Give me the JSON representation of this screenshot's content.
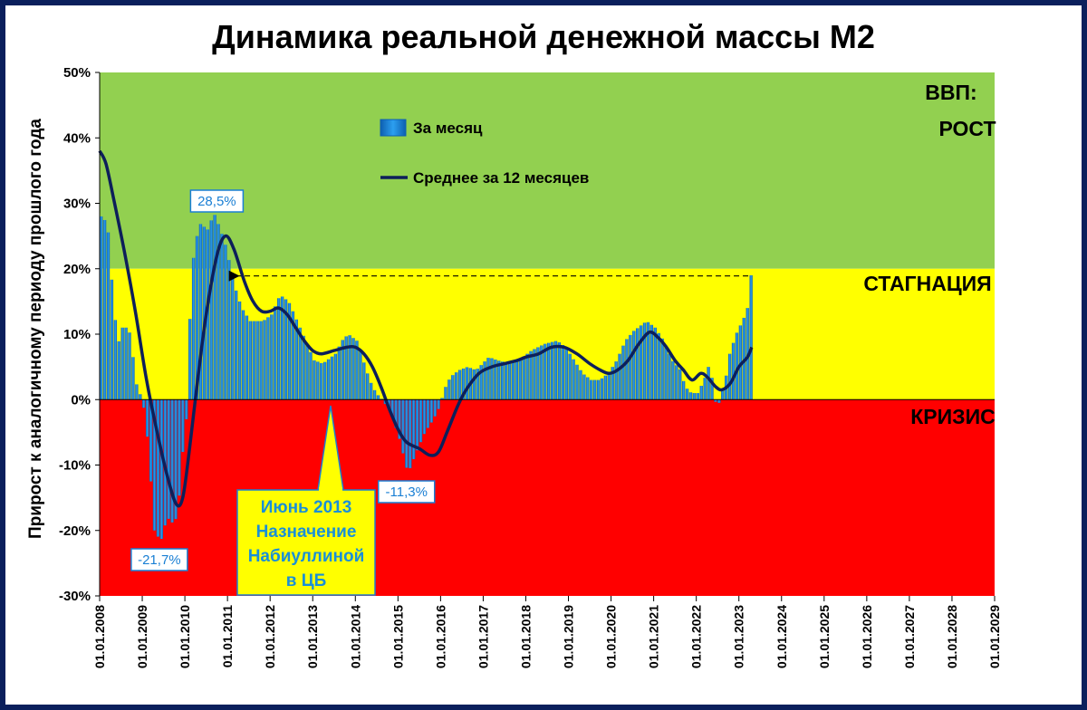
{
  "chart_data": {
    "type": "bar",
    "title": "Динамика реальной денежной массы М2",
    "ylabel": "Прирост к аналогичному периоду прошлого года",
    "ylim": [
      -30,
      50
    ],
    "yticks": [
      "50%",
      "40%",
      "30%",
      "20%",
      "10%",
      "0%",
      "-10%",
      "-20%",
      "-30%"
    ],
    "x_ticks": [
      "01.01.2008",
      "01.01.2009",
      "01.01.2010",
      "01.01.2011",
      "01.01.2012",
      "01.01.2013",
      "01.01.2014",
      "01.01.2015",
      "01.01.2016",
      "01.01.2017",
      "01.01.2018",
      "01.01.2019",
      "01.01.2020",
      "01.01.2021",
      "01.01.2022",
      "01.01.2023",
      "01.01.2024",
      "01.01.2025",
      "01.01.2026",
      "01.01.2027",
      "01.01.2028",
      "01.01.2029"
    ],
    "x_start_year": 2008,
    "zones": [
      {
        "name": "growth",
        "from": 20,
        "to": 50,
        "color": "#92d050",
        "label_lines": [
          "ВВП:",
          "РОСТ"
        ]
      },
      {
        "name": "stagnation",
        "from": 0,
        "to": 20,
        "color": "#ffff00",
        "label_lines": [
          "СТАГНАЦИЯ"
        ]
      },
      {
        "name": "crisis",
        "from": -30,
        "to": 0,
        "color": "#ff0000",
        "label_lines": [
          "КРИЗИС"
        ]
      }
    ],
    "series": [
      {
        "name": "За месяц",
        "kind": "bar",
        "color": "#1a7fd4",
        "anchors": [
          [
            2008.0,
            28
          ],
          [
            2008.15,
            27
          ],
          [
            2008.3,
            14
          ],
          [
            2008.4,
            8.5
          ],
          [
            2008.5,
            11
          ],
          [
            2008.65,
            11
          ],
          [
            2008.75,
            6.5
          ],
          [
            2008.85,
            1.5
          ],
          [
            2008.95,
            0.5
          ],
          [
            2009.05,
            -3
          ],
          [
            2009.15,
            -11
          ],
          [
            2009.25,
            -20
          ],
          [
            2009.4,
            -21.7
          ],
          [
            2009.55,
            -18
          ],
          [
            2009.7,
            -19
          ],
          [
            2009.8,
            -17.5
          ],
          [
            2009.9,
            -9
          ],
          [
            2010.0,
            -3
          ],
          [
            2010.05,
            8
          ],
          [
            2010.15,
            21
          ],
          [
            2010.3,
            27
          ],
          [
            2010.5,
            26
          ],
          [
            2010.65,
            28.5
          ],
          [
            2010.8,
            26
          ],
          [
            2010.95,
            23
          ],
          [
            2011.1,
            18
          ],
          [
            2011.3,
            14
          ],
          [
            2011.5,
            12
          ],
          [
            2011.8,
            12
          ],
          [
            2012.0,
            13
          ],
          [
            2012.2,
            16
          ],
          [
            2012.4,
            15
          ],
          [
            2012.6,
            12
          ],
          [
            2012.8,
            9
          ],
          [
            2013.0,
            6
          ],
          [
            2013.2,
            5.5
          ],
          [
            2013.5,
            7
          ],
          [
            2013.65,
            9
          ],
          [
            2013.8,
            10
          ],
          [
            2014.0,
            9
          ],
          [
            2014.15,
            6
          ],
          [
            2014.3,
            3
          ],
          [
            2014.45,
            1
          ],
          [
            2014.6,
            0
          ],
          [
            2014.8,
            -2
          ],
          [
            2015.0,
            -6
          ],
          [
            2015.2,
            -11.3
          ],
          [
            2015.4,
            -8
          ],
          [
            2015.6,
            -5
          ],
          [
            2015.8,
            -3
          ],
          [
            2015.95,
            -1
          ],
          [
            2016.05,
            1.5
          ],
          [
            2016.2,
            3.5
          ],
          [
            2016.4,
            4.5
          ],
          [
            2016.6,
            5
          ],
          [
            2016.8,
            4.5
          ],
          [
            2016.95,
            5.5
          ],
          [
            2017.1,
            6.5
          ],
          [
            2017.3,
            6
          ],
          [
            2017.6,
            5.5
          ],
          [
            2017.9,
            6.5
          ],
          [
            2018.1,
            7.5
          ],
          [
            2018.4,
            8.5
          ],
          [
            2018.7,
            9
          ],
          [
            2018.9,
            8
          ],
          [
            2019.1,
            6
          ],
          [
            2019.3,
            4
          ],
          [
            2019.5,
            3
          ],
          [
            2019.7,
            3
          ],
          [
            2019.9,
            4
          ],
          [
            2020.1,
            6
          ],
          [
            2020.3,
            9
          ],
          [
            2020.5,
            10.5
          ],
          [
            2020.8,
            12
          ],
          [
            2021.0,
            11
          ],
          [
            2021.2,
            9
          ],
          [
            2021.4,
            6
          ],
          [
            2021.6,
            4.5
          ],
          [
            2021.7,
            2
          ],
          [
            2021.85,
            1
          ],
          [
            2022.0,
            1
          ],
          [
            2022.15,
            3
          ],
          [
            2022.25,
            5
          ],
          [
            2022.35,
            3
          ],
          [
            2022.45,
            -2
          ],
          [
            2022.55,
            1
          ],
          [
            2022.65,
            3
          ],
          [
            2022.75,
            7
          ],
          [
            2022.9,
            10
          ],
          [
            2023.05,
            12
          ],
          [
            2023.15,
            13.5
          ],
          [
            2023.2,
            15
          ],
          [
            2023.25,
            19
          ]
        ]
      },
      {
        "name": "Среднее за 12 месяцев",
        "kind": "line",
        "color": "#0d1f5a",
        "points": [
          [
            2008.0,
            38
          ],
          [
            2008.15,
            36
          ],
          [
            2008.35,
            30
          ],
          [
            2008.6,
            22
          ],
          [
            2008.85,
            13
          ],
          [
            2009.1,
            3
          ],
          [
            2009.35,
            -5
          ],
          [
            2009.6,
            -12
          ],
          [
            2009.8,
            -16
          ],
          [
            2009.95,
            -15
          ],
          [
            2010.1,
            -8
          ],
          [
            2010.3,
            3
          ],
          [
            2010.5,
            13
          ],
          [
            2010.75,
            22
          ],
          [
            2010.95,
            25
          ],
          [
            2011.15,
            23
          ],
          [
            2011.4,
            18
          ],
          [
            2011.6,
            15
          ],
          [
            2011.8,
            13.5
          ],
          [
            2012.0,
            13.5
          ],
          [
            2012.2,
            14
          ],
          [
            2012.4,
            13
          ],
          [
            2012.6,
            11
          ],
          [
            2012.8,
            9
          ],
          [
            2013.0,
            7.5
          ],
          [
            2013.2,
            7
          ],
          [
            2013.5,
            7.5
          ],
          [
            2013.8,
            8
          ],
          [
            2014.0,
            8
          ],
          [
            2014.2,
            7
          ],
          [
            2014.4,
            5
          ],
          [
            2014.6,
            2
          ],
          [
            2014.8,
            -1.5
          ],
          [
            2015.0,
            -4.5
          ],
          [
            2015.2,
            -6.5
          ],
          [
            2015.5,
            -7.5
          ],
          [
            2015.75,
            -8.5
          ],
          [
            2015.95,
            -8
          ],
          [
            2016.15,
            -5
          ],
          [
            2016.4,
            -1
          ],
          [
            2016.6,
            1.5
          ],
          [
            2016.9,
            4
          ],
          [
            2017.2,
            5
          ],
          [
            2017.5,
            5.5
          ],
          [
            2017.8,
            6
          ],
          [
            2018.0,
            6.5
          ],
          [
            2018.3,
            7
          ],
          [
            2018.6,
            8
          ],
          [
            2018.9,
            8
          ],
          [
            2019.2,
            7
          ],
          [
            2019.5,
            5.5
          ],
          [
            2019.75,
            4.5
          ],
          [
            2019.95,
            4
          ],
          [
            2020.15,
            4.5
          ],
          [
            2020.4,
            6
          ],
          [
            2020.65,
            8.5
          ],
          [
            2020.9,
            10.3
          ],
          [
            2021.1,
            9.5
          ],
          [
            2021.3,
            8
          ],
          [
            2021.5,
            6
          ],
          [
            2021.7,
            4.5
          ],
          [
            2021.9,
            3
          ],
          [
            2022.1,
            4
          ],
          [
            2022.25,
            3.5
          ],
          [
            2022.45,
            2
          ],
          [
            2022.6,
            1.5
          ],
          [
            2022.8,
            2.5
          ],
          [
            2023.0,
            5
          ],
          [
            2023.2,
            6.5
          ],
          [
            2023.3,
            8
          ]
        ]
      }
    ],
    "stagnation_target_label": "",
    "annotations": {
      "max": "28,5%",
      "min_2009": "-21,7%",
      "min_2015": "-11,3%",
      "note_lines": [
        "Июнь 2013",
        "Назначение",
        "Набиуллиной",
        "в ЦБ"
      ]
    },
    "legend": {
      "position": "top-left-inside"
    }
  }
}
